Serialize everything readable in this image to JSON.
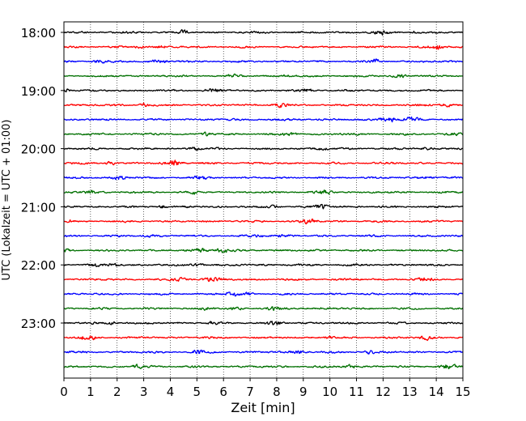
{
  "chart_data": {
    "type": "line",
    "xlabel": "Zeit  [min]",
    "ylabel": "UTC (Lokalzeit = UTC + 01:00)",
    "xlim": [
      0,
      15
    ],
    "x_ticks": [
      "0",
      "1",
      "2",
      "3",
      "4",
      "5",
      "6",
      "7",
      "8",
      "9",
      "10",
      "11",
      "12",
      "13",
      "14",
      "15"
    ],
    "y_tick_labels": [
      "18:00",
      "19:00",
      "20:00",
      "21:00",
      "22:00",
      "23:00"
    ],
    "grid": "vertical dotted",
    "trace_interval_min": 15,
    "color_cycle": [
      "#000000",
      "#ff0000",
      "#0000ff",
      "#007000"
    ],
    "series": [
      {
        "trace": "18:00",
        "color": "#000000"
      },
      {
        "trace": "18:15",
        "color": "#ff0000"
      },
      {
        "trace": "18:30",
        "color": "#0000ff"
      },
      {
        "trace": "18:45",
        "color": "#007000"
      },
      {
        "trace": "19:00",
        "color": "#000000"
      },
      {
        "trace": "19:15",
        "color": "#ff0000"
      },
      {
        "trace": "19:30",
        "color": "#0000ff"
      },
      {
        "trace": "19:45",
        "color": "#007000"
      },
      {
        "trace": "20:00",
        "color": "#000000"
      },
      {
        "trace": "20:15",
        "color": "#ff0000"
      },
      {
        "trace": "20:30",
        "color": "#0000ff"
      },
      {
        "trace": "20:45",
        "color": "#007000"
      },
      {
        "trace": "21:00",
        "color": "#000000"
      },
      {
        "trace": "21:15",
        "color": "#ff0000"
      },
      {
        "trace": "21:30",
        "color": "#0000ff"
      },
      {
        "trace": "21:45",
        "color": "#007000"
      },
      {
        "trace": "22:00",
        "color": "#000000"
      },
      {
        "trace": "22:15",
        "color": "#ff0000"
      },
      {
        "trace": "22:30",
        "color": "#0000ff"
      },
      {
        "trace": "22:45",
        "color": "#007000"
      },
      {
        "trace": "23:00",
        "color": "#000000"
      },
      {
        "trace": "23:15",
        "color": "#ff0000"
      },
      {
        "trace": "23:30",
        "color": "#0000ff"
      },
      {
        "trace": "23:45",
        "color": "#007000"
      }
    ]
  }
}
